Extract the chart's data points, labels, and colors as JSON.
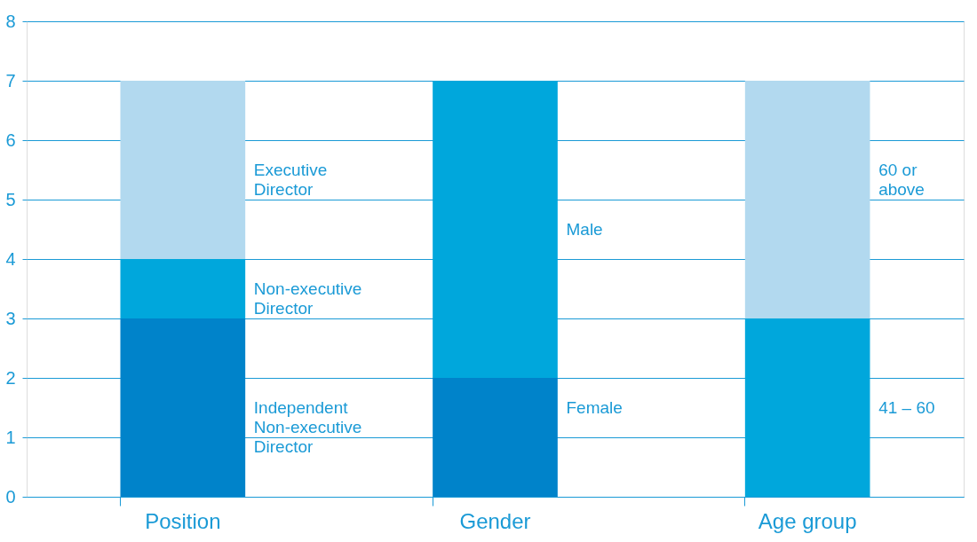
{
  "chart_data": {
    "type": "bar",
    "stacked": true,
    "categories": [
      "Position",
      "Gender",
      "Age group"
    ],
    "series": [
      {
        "color": "#0083ca",
        "values": [
          3,
          2,
          null
        ]
      },
      {
        "color": "#00a7dc",
        "values": [
          1,
          5,
          3
        ]
      },
      {
        "color": "#b2d9ef",
        "values": [
          3,
          null,
          4
        ]
      }
    ],
    "ylim": [
      0,
      8
    ],
    "yticks": [
      0,
      1,
      2,
      3,
      4,
      5,
      6,
      7,
      8
    ],
    "grid": "y",
    "legend": false,
    "annotations": [
      "Executive\nDirector",
      "Non-executive\nDirector",
      "Independent\nNon-executive\nDirector",
      "Male",
      "Female",
      "60 or\nabove",
      "41 – 60"
    ]
  }
}
